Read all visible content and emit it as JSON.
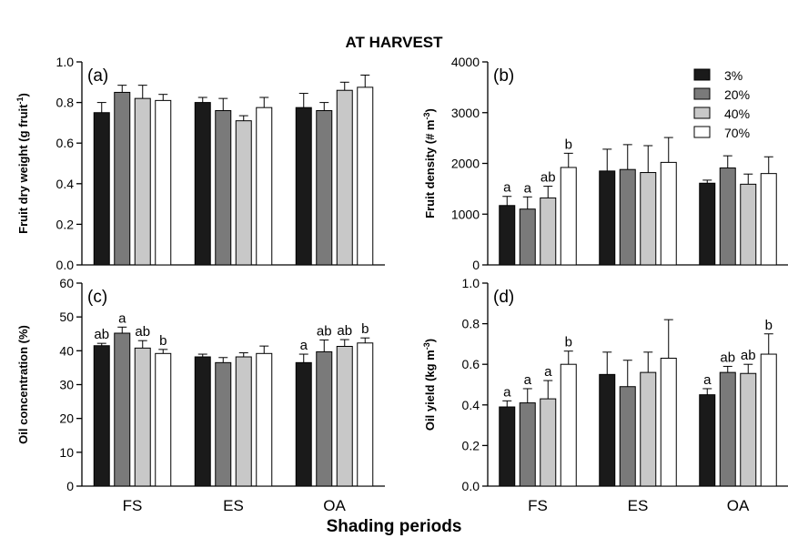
{
  "figure": {
    "title": "AT HARVEST",
    "xlabel": "Shading periods"
  },
  "legend": {
    "placement": "top-right of panel (b)",
    "entries": [
      {
        "label": "3%",
        "color": "#1a1a1a"
      },
      {
        "label": "20%",
        "color": "#7a7a7a"
      },
      {
        "label": "40%",
        "color": "#c8c8c8"
      },
      {
        "label": "70%",
        "color": "#ffffff"
      }
    ]
  },
  "chart_data": [
    {
      "type": "bar",
      "panel": "(a)",
      "ylabel": "Fruit dry weight (g fruit",
      "ylabel_sup": "-1",
      "ylabel_end": ")",
      "ylim": [
        0,
        1.0
      ],
      "yticks": [
        "0.0",
        "0.2",
        "0.4",
        "0.6",
        "0.8",
        "1.0"
      ],
      "categories": [
        "FS",
        "ES",
        "OA"
      ],
      "series": [
        {
          "name": "3%",
          "values": [
            0.75,
            0.8,
            0.775
          ],
          "errors": [
            0.05,
            0.025,
            0.07
          ],
          "letters": [
            "",
            "",
            ""
          ]
        },
        {
          "name": "20%",
          "values": [
            0.85,
            0.76,
            0.76
          ],
          "errors": [
            0.035,
            0.06,
            0.04
          ],
          "letters": [
            "",
            "",
            ""
          ]
        },
        {
          "name": "40%",
          "values": [
            0.82,
            0.71,
            0.86
          ],
          "errors": [
            0.065,
            0.025,
            0.04
          ],
          "letters": [
            "",
            "",
            ""
          ]
        },
        {
          "name": "70%",
          "values": [
            0.81,
            0.775,
            0.875
          ],
          "errors": [
            0.03,
            0.05,
            0.06
          ],
          "letters": [
            "",
            "",
            ""
          ]
        }
      ]
    },
    {
      "type": "bar",
      "panel": "(b)",
      "ylabel": "Fruit density (# m",
      "ylabel_sup": "-3",
      "ylabel_end": ")",
      "ylim": [
        0,
        4000
      ],
      "yticks": [
        "0",
        "1000",
        "2000",
        "3000",
        "4000"
      ],
      "categories": [
        "FS",
        "ES",
        "OA"
      ],
      "series": [
        {
          "name": "3%",
          "values": [
            1170,
            1850,
            1610
          ],
          "errors": [
            180,
            430,
            60
          ],
          "letters": [
            "a",
            "",
            ""
          ]
        },
        {
          "name": "20%",
          "values": [
            1100,
            1880,
            1910
          ],
          "errors": [
            240,
            490,
            240
          ],
          "letters": [
            "a",
            "",
            ""
          ]
        },
        {
          "name": "40%",
          "values": [
            1320,
            1820,
            1590
          ],
          "errors": [
            230,
            530,
            200
          ],
          "letters": [
            "ab",
            "",
            ""
          ]
        },
        {
          "name": "70%",
          "values": [
            1920,
            2020,
            1800
          ],
          "errors": [
            280,
            490,
            330
          ],
          "letters": [
            "b",
            "",
            ""
          ]
        }
      ]
    },
    {
      "type": "bar",
      "panel": "(c)",
      "ylabel": "Oil concentration (%)",
      "ylabel_sup": "",
      "ylabel_end": "",
      "ylim": [
        0,
        60
      ],
      "yticks": [
        "0",
        "10",
        "20",
        "30",
        "40",
        "50",
        "60"
      ],
      "categories": [
        "FS",
        "ES",
        "OA"
      ],
      "series": [
        {
          "name": "3%",
          "values": [
            41.5,
            38.2,
            36.5
          ],
          "errors": [
            0.7,
            0.8,
            2.5
          ],
          "letters": [
            "ab",
            "",
            "a"
          ]
        },
        {
          "name": "20%",
          "values": [
            45.2,
            36.5,
            39.7
          ],
          "errors": [
            1.8,
            1.5,
            3.5
          ],
          "letters": [
            "a",
            "",
            "ab"
          ]
        },
        {
          "name": "40%",
          "values": [
            40.8,
            38.2,
            41.3
          ],
          "errors": [
            2.2,
            1.2,
            2.0
          ],
          "letters": [
            "ab",
            "",
            "ab"
          ]
        },
        {
          "name": "70%",
          "values": [
            39.2,
            39.2,
            42.3
          ],
          "errors": [
            1.2,
            2.2,
            1.5
          ],
          "letters": [
            "b",
            "",
            "b"
          ]
        }
      ]
    },
    {
      "type": "bar",
      "panel": "(d)",
      "ylabel": "Oil yield (kg m",
      "ylabel_sup": "-3",
      "ylabel_end": ")",
      "ylim": [
        0,
        1.0
      ],
      "yticks": [
        "0.0",
        "0.2",
        "0.4",
        "0.6",
        "0.8",
        "1.0"
      ],
      "categories": [
        "FS",
        "ES",
        "OA"
      ],
      "series": [
        {
          "name": "3%",
          "values": [
            0.39,
            0.55,
            0.45
          ],
          "errors": [
            0.03,
            0.11,
            0.03
          ],
          "letters": [
            "a",
            "",
            "a"
          ]
        },
        {
          "name": "20%",
          "values": [
            0.41,
            0.49,
            0.56
          ],
          "errors": [
            0.07,
            0.13,
            0.03
          ],
          "letters": [
            "a",
            "",
            "ab"
          ]
        },
        {
          "name": "40%",
          "values": [
            0.43,
            0.56,
            0.555
          ],
          "errors": [
            0.09,
            0.1,
            0.045
          ],
          "letters": [
            "a",
            "",
            "ab"
          ]
        },
        {
          "name": "70%",
          "values": [
            0.6,
            0.63,
            0.65
          ],
          "errors": [
            0.065,
            0.19,
            0.1
          ],
          "letters": [
            "b",
            "",
            "b"
          ]
        }
      ]
    }
  ]
}
